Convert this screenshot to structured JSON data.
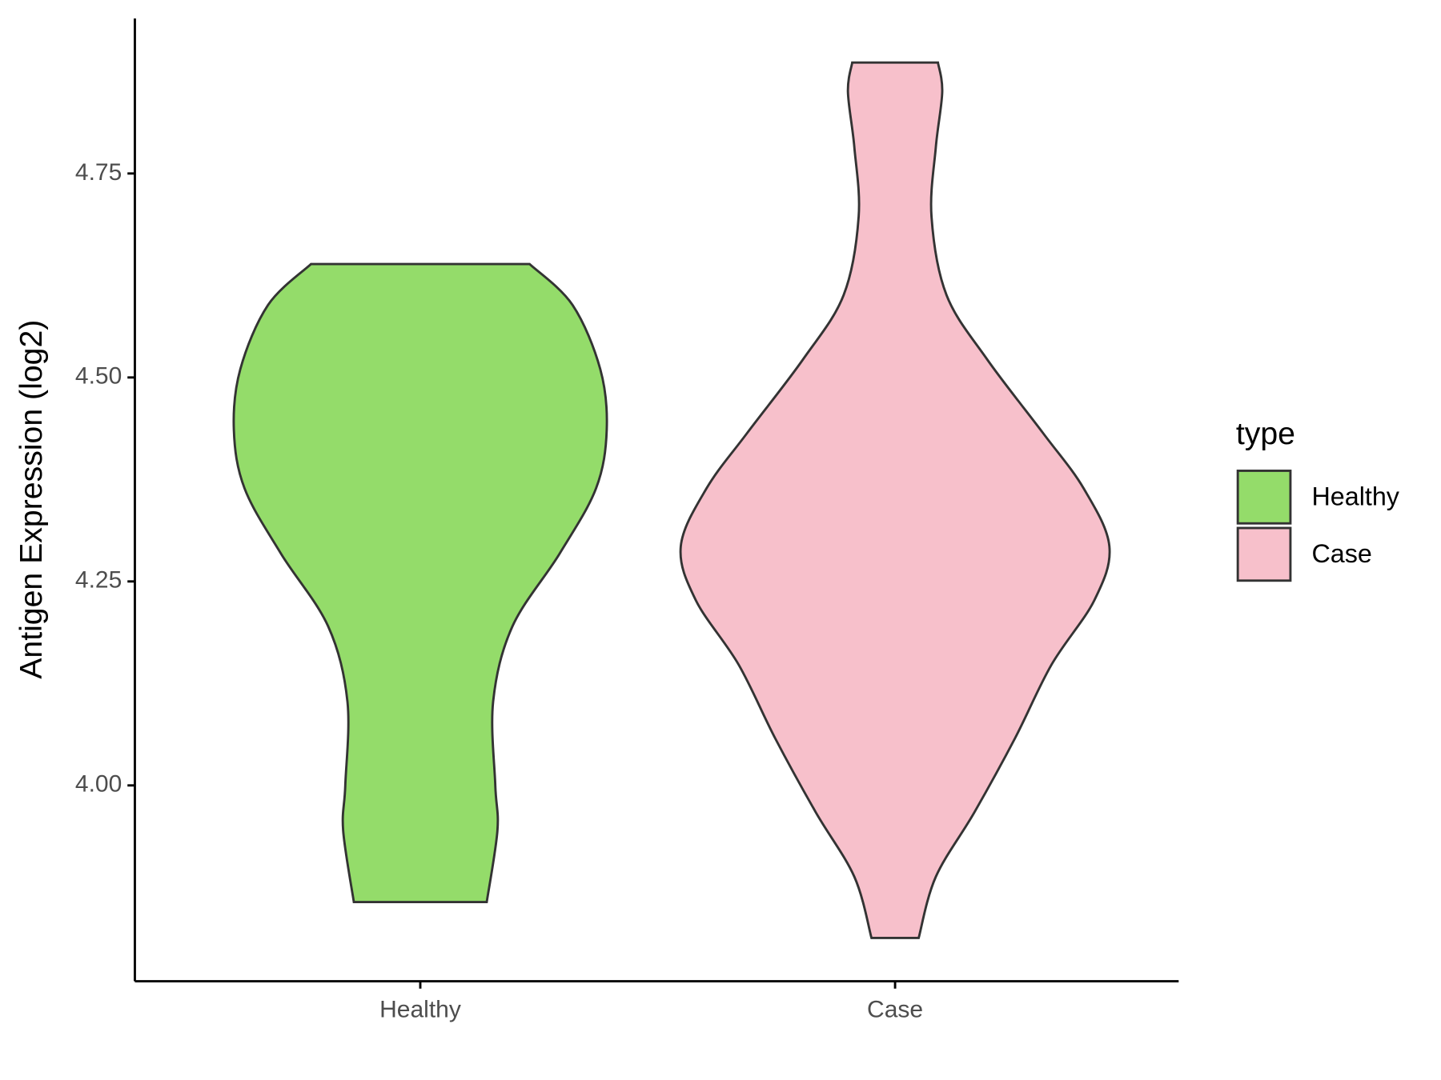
{
  "chart_data": {
    "type": "violin",
    "y_label": "Antigen Expression (log2)",
    "categories": [
      "Healthy",
      "Case"
    ],
    "legend_title": "type",
    "legend_position": "right",
    "ylim": [
      3.76,
      4.94
    ],
    "yticks": [
      {
        "value": 4,
        "label": "4.00"
      },
      4.25,
      {
        "value": 4.5,
        "label": "4.50"
      },
      4.75
    ],
    "series": [
      {
        "name": "Healthy",
        "color": "#94dc6a",
        "y": [
          4.639,
          4.589,
          4.51,
          4.436,
          4.364,
          4.284,
          4.195,
          4.103,
          4.0,
          3.945,
          3.857
        ],
        "width": [
          0.51,
          0.71,
          0.84,
          0.87,
          0.82,
          0.65,
          0.43,
          0.34,
          0.35,
          0.36,
          0.31
        ]
      },
      {
        "name": "Case",
        "color": "#f7c0cb",
        "y": [
          4.886,
          4.85,
          4.782,
          4.697,
          4.601,
          4.522,
          4.432,
          4.364,
          4.293,
          4.227,
          4.148,
          4.058,
          3.967,
          3.888,
          3.813
        ],
        "width": [
          0.2,
          0.22,
          0.19,
          0.17,
          0.24,
          0.43,
          0.69,
          0.88,
          1,
          0.93,
          0.73,
          0.56,
          0.37,
          0.19,
          0.11
        ]
      }
    ]
  }
}
